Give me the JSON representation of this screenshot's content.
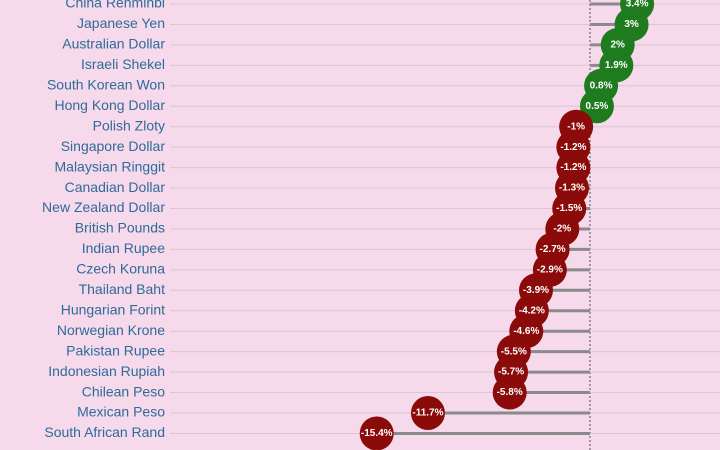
{
  "chart_data": {
    "type": "lollipop",
    "categories": [
      "China Renminbi",
      "Japanese Yen",
      "Australian Dollar",
      "Israeli Shekel",
      "South Korean Won",
      "Hong Kong Dollar",
      "Polish Zloty",
      "Singapore Dollar",
      "Malaysian Ringgit",
      "Canadian Dollar",
      "New Zealand Dollar",
      "British Pounds",
      "Indian Rupee",
      "Czech Koruna",
      "Thailand Baht",
      "Hungarian Forint",
      "Norwegian Krone",
      "Pakistan Rupee",
      "Indonesian Rupiah",
      "Chilean Peso",
      "Mexican Peso",
      "South African Rand"
    ],
    "values": [
      3.4,
      3,
      2,
      1.9,
      0.8,
      0.5,
      -1,
      -1.2,
      -1.2,
      -1.3,
      -1.5,
      -2,
      -2.7,
      -2.9,
      -3.9,
      -4.2,
      -4.6,
      -5.5,
      -5.7,
      -5.8,
      -11.7,
      -15.4
    ],
    "value_labels": [
      "3.4%",
      "3%",
      "2%",
      "1.9%",
      "0.8%",
      "0.5%",
      "-1%",
      "-1.2%",
      "-1.2%",
      "-1.3%",
      "-1.5%",
      "-2%",
      "-2.7%",
      "-2.9%",
      "-3.9%",
      "-4.2%",
      "-4.6%",
      "-5.5%",
      "-5.7%",
      "-5.8%",
      "-11.7%",
      "-15.4%"
    ],
    "positive_color": "#1e7b1e",
    "negative_color": "#8b0a0a",
    "grid": true
  }
}
